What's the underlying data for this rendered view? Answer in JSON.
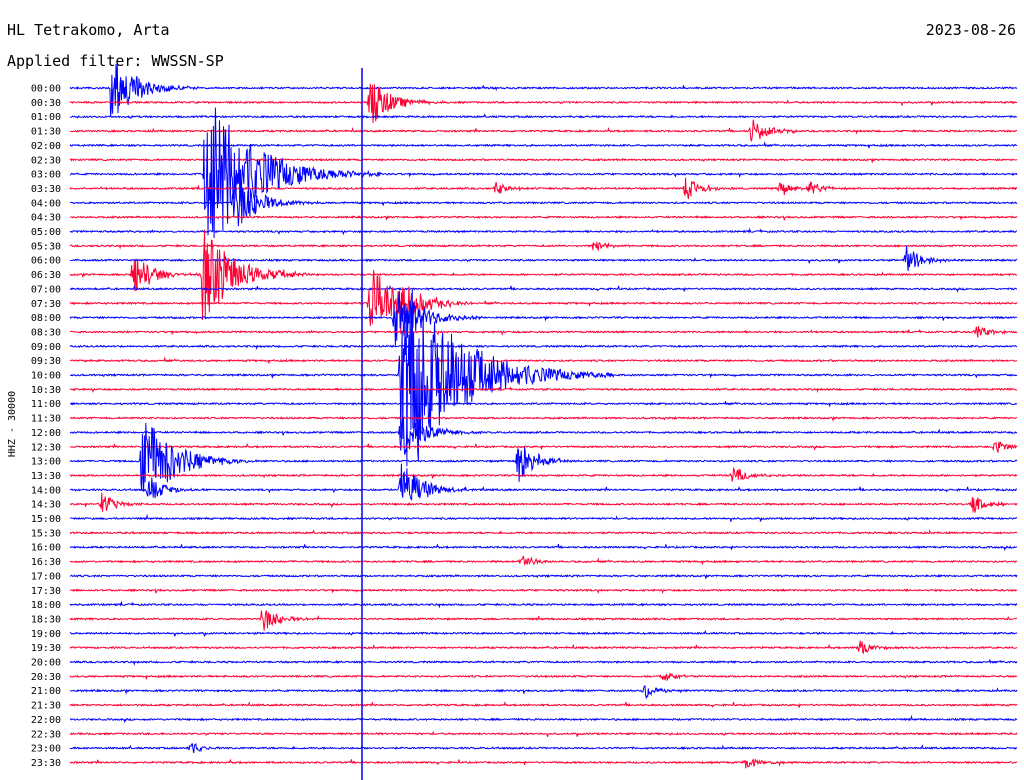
{
  "header": {
    "station": "HL Tetrakomo, Arta",
    "filter": "Applied filter: WWSSN-SP",
    "date": "2023-08-26"
  },
  "chart_data": {
    "type": "line",
    "title": "HL Tetrakomo, Arta",
    "subtitle": "Applied filter: WWSSN-SP",
    "date": "2023-08-26",
    "ylabel": "HHZ - 30000",
    "row_labels": [
      "00:00",
      "00:30",
      "01:00",
      "01:30",
      "02:00",
      "02:30",
      "03:00",
      "03:30",
      "04:00",
      "04:30",
      "05:00",
      "05:30",
      "06:00",
      "06:30",
      "07:00",
      "07:30",
      "08:00",
      "08:30",
      "09:00",
      "09:30",
      "10:00",
      "10:30",
      "11:00",
      "11:30",
      "12:00",
      "12:30",
      "13:00",
      "13:30",
      "14:00",
      "14:30",
      "15:00",
      "15:30",
      "16:00",
      "16:30",
      "17:00",
      "17:30",
      "18:00",
      "18:30",
      "19:00",
      "19:30",
      "20:00",
      "20:30",
      "21:00",
      "21:30",
      "22:00",
      "22:30",
      "23:00",
      "23:30"
    ],
    "series_colors": [
      "#0000ff",
      "#ff0033"
    ],
    "color_rule": "alternating by row, starting blue at 00:00",
    "minutes_per_row": 30,
    "events": [
      {
        "row": "00:00",
        "minute": 1.3,
        "amplitude": 2.5
      },
      {
        "row": "00:30",
        "minute": 9.5,
        "amplitude": 1.8
      },
      {
        "row": "01:30",
        "minute": 21.6,
        "amplitude": 1.0
      },
      {
        "row": "03:00",
        "minute": 4.3,
        "amplitude": 6.0
      },
      {
        "row": "03:30",
        "minute": 19.5,
        "amplitude": 0.9
      },
      {
        "row": "03:30",
        "minute": 22.5,
        "amplitude": 0.6
      },
      {
        "row": "03:30",
        "minute": 23.4,
        "amplitude": 0.6
      },
      {
        "row": "03:30",
        "minute": 13.5,
        "amplitude": 0.5
      },
      {
        "row": "04:00",
        "minute": 5.2,
        "amplitude": 2.2
      },
      {
        "row": "05:30",
        "minute": 16.6,
        "amplitude": 0.5
      },
      {
        "row": "06:00",
        "minute": 26.5,
        "amplitude": 1.0
      },
      {
        "row": "06:30",
        "minute": 2.0,
        "amplitude": 1.6
      },
      {
        "row": "06:30",
        "minute": 4.2,
        "amplitude": 3.5
      },
      {
        "row": "07:30",
        "minute": 9.5,
        "amplitude": 2.8
      },
      {
        "row": "07:30",
        "minute": 10.5,
        "amplitude": 1.8
      },
      {
        "row": "08:00",
        "minute": 10.3,
        "amplitude": 2.5
      },
      {
        "row": "08:30",
        "minute": 28.7,
        "amplitude": 0.6
      },
      {
        "row": "10:00",
        "minute": 10.5,
        "amplitude": 7.5
      },
      {
        "row": "10:00",
        "minute": 11.0,
        "amplitude": 0.9
      },
      {
        "row": "12:00",
        "minute": 10.5,
        "amplitude": 2.0
      },
      {
        "row": "12:30",
        "minute": 29.3,
        "amplitude": 0.6
      },
      {
        "row": "13:00",
        "minute": 14.2,
        "amplitude": 1.5
      },
      {
        "row": "13:00",
        "minute": 2.3,
        "amplitude": 3.5
      },
      {
        "row": "13:30",
        "minute": 21.0,
        "amplitude": 0.7
      },
      {
        "row": "14:00",
        "minute": 10.5,
        "amplitude": 2.0
      },
      {
        "row": "14:00",
        "minute": 2.5,
        "amplitude": 1.0
      },
      {
        "row": "14:30",
        "minute": 1.0,
        "amplitude": 0.8
      },
      {
        "row": "14:30",
        "minute": 28.6,
        "amplitude": 0.7
      },
      {
        "row": "16:30",
        "minute": 14.3,
        "amplitude": 0.6
      },
      {
        "row": "18:30",
        "minute": 6.1,
        "amplitude": 1.0
      },
      {
        "row": "19:30",
        "minute": 25.0,
        "amplitude": 0.6
      },
      {
        "row": "20:30",
        "minute": 18.8,
        "amplitude": 0.5
      },
      {
        "row": "21:00",
        "minute": 18.2,
        "amplitude": 0.6
      },
      {
        "row": "23:00",
        "minute": 3.8,
        "amplitude": 0.5
      },
      {
        "row": "23:30",
        "minute": 21.4,
        "amplitude": 0.5
      }
    ]
  }
}
